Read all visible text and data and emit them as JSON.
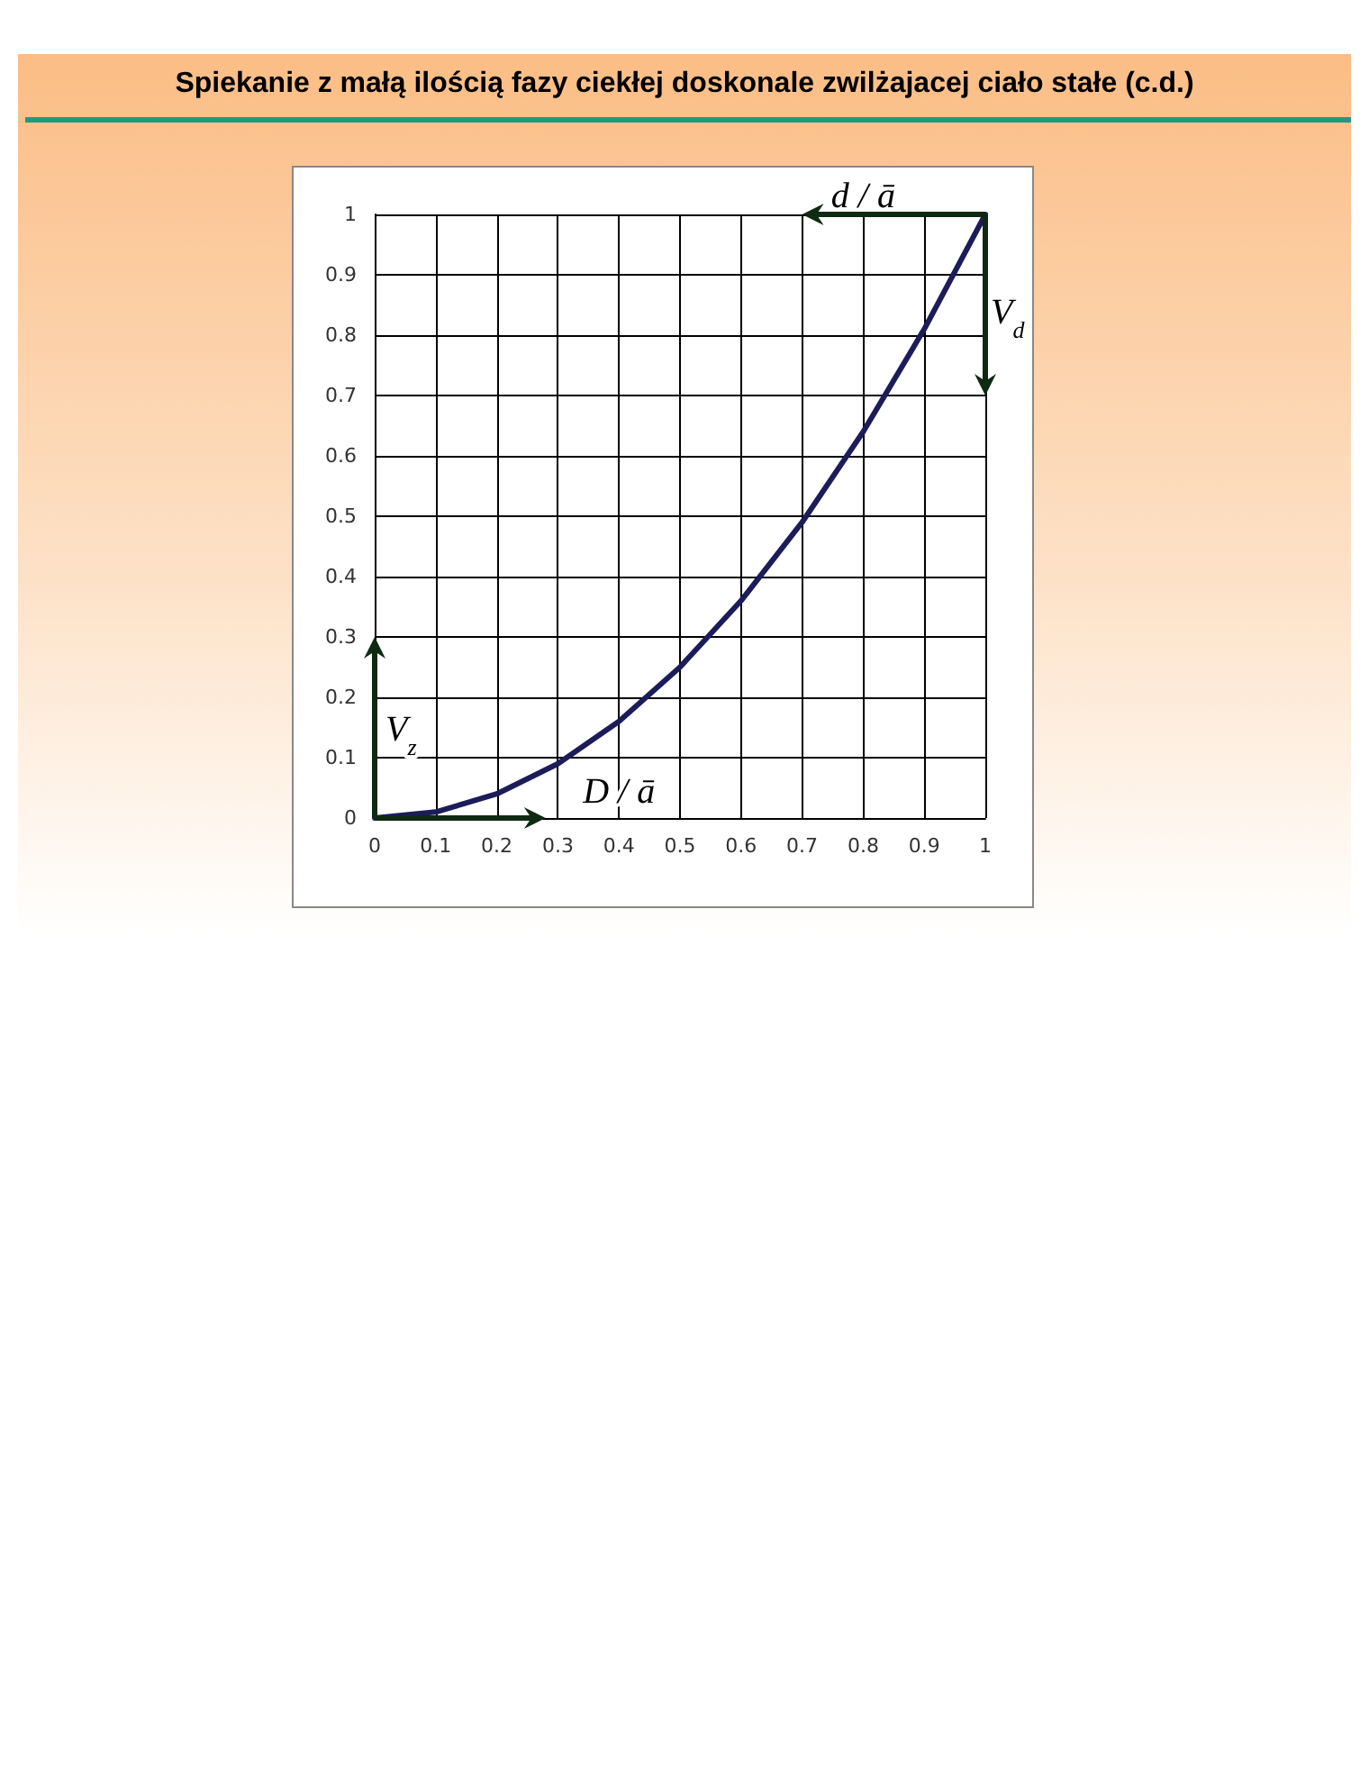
{
  "chart_data": {
    "type": "line",
    "title": "Spiekanie z małą ilością fazy ciekłej doskonale zwilżajacej ciało stałe (c.d.)",
    "x": [
      0,
      0.1,
      0.2,
      0.3,
      0.4,
      0.5,
      0.6,
      0.7,
      0.8,
      0.9,
      1
    ],
    "series": [
      {
        "color": "#1c1c5a",
        "values": [
          0,
          0.01,
          0.04,
          0.09,
          0.16,
          0.25,
          0.36,
          0.49,
          0.64,
          0.81,
          1
        ]
      }
    ],
    "xlim": [
      0,
      1
    ],
    "ylim": [
      0,
      1
    ],
    "xticks": [
      0,
      0.1,
      0.2,
      0.3,
      0.4,
      0.5,
      0.6,
      0.7,
      0.8,
      0.9,
      1
    ],
    "yticks": [
      0,
      0.1,
      0.2,
      0.3,
      0.4,
      0.5,
      0.6,
      0.7,
      0.8,
      0.9,
      1
    ],
    "grid": true,
    "marker": "none",
    "line_style": "solid",
    "annotations": [
      "d / ā",
      "V$_{d}$",
      "V$_{z}$",
      "D / ā"
    ]
  }
}
